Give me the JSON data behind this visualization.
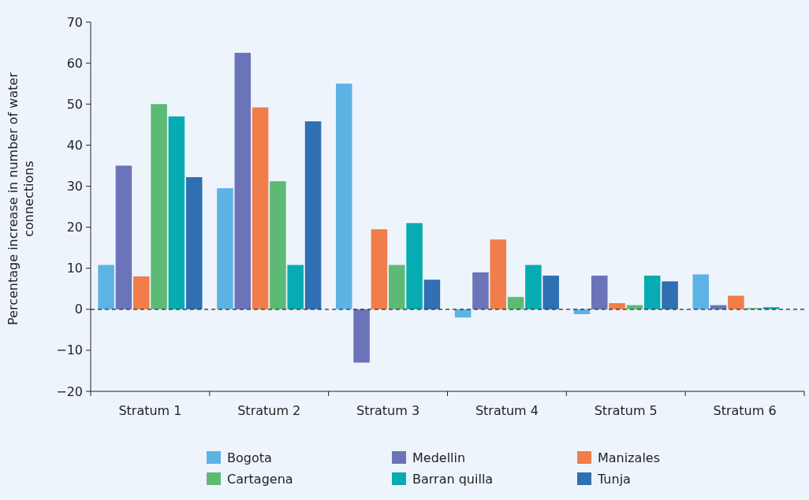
{
  "chart_data": {
    "type": "bar",
    "ylabel": "Percentage increase in number of water connections",
    "categories": [
      "Stratum 1",
      "Stratum 2",
      "Stratum 3",
      "Stratum 4",
      "Stratum 5",
      "Stratum 6"
    ],
    "series": [
      {
        "name": "Bogota",
        "color": "#5cb3e4",
        "values": [
          10.8,
          29.5,
          55,
          -2,
          -1.2,
          8.5
        ]
      },
      {
        "name": "Medellin",
        "color": "#6b74b9",
        "values": [
          35,
          62.5,
          -13,
          9,
          8.2,
          1
        ]
      },
      {
        "name": "Manizales",
        "color": "#f07d4a",
        "values": [
          8,
          49.2,
          19.5,
          17,
          1.5,
          3.3
        ]
      },
      {
        "name": "Cartagena",
        "color": "#5dba75",
        "values": [
          50,
          31.2,
          10.8,
          3,
          1,
          0.3
        ]
      },
      {
        "name": "Barran quilla",
        "color": "#07abb2",
        "values": [
          47,
          10.8,
          21,
          10.8,
          8.2,
          0.5
        ]
      },
      {
        "name": "Tunja",
        "color": "#2f6fb2",
        "values": [
          32.2,
          45.8,
          7.2,
          8.2,
          6.8,
          null
        ]
      }
    ],
    "ylim": [
      -20,
      70
    ],
    "yticks": [
      -20,
      -10,
      0,
      10,
      20,
      30,
      40,
      50,
      60,
      70
    ],
    "grid": false,
    "legend": "bottom",
    "ref_lines": [
      {
        "axis": "y",
        "value": 0,
        "line_style": "dashed",
        "color": "#222222"
      }
    ]
  }
}
